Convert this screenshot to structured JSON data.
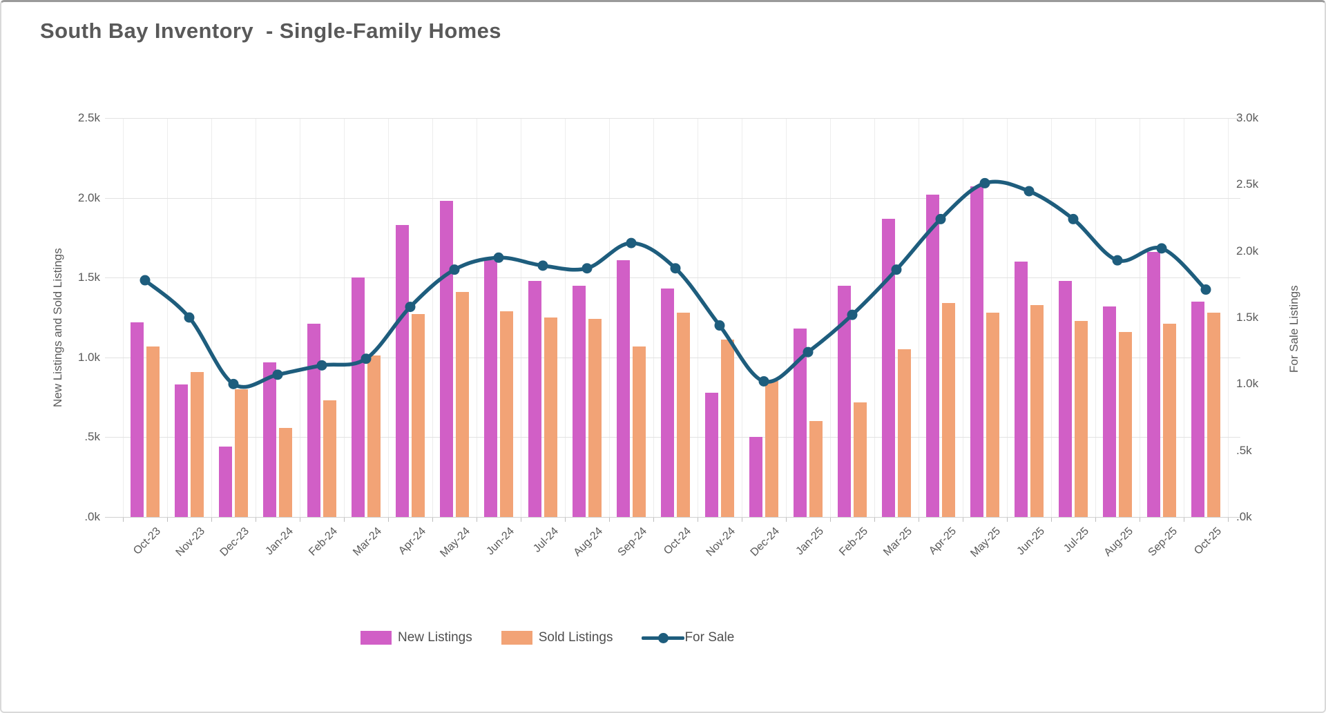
{
  "title": "South Bay Inventory  - Single-Family Homes",
  "colors": {
    "new_listings": "#d15fc6",
    "sold_listings": "#f2a376",
    "for_sale": "#1e5d7d",
    "text": "#595959",
    "gridline": "#e2e2e2"
  },
  "legend": {
    "items": [
      {
        "label": "New Listings",
        "type": "bar"
      },
      {
        "label": "Sold Listings",
        "type": "bar"
      },
      {
        "label": "For Sale",
        "type": "line"
      }
    ]
  },
  "chart_data": {
    "type": "combo bar+line",
    "units": "thousands of listings",
    "categories": [
      "Oct-23",
      "Nov-23",
      "Dec-23",
      "Jan-24",
      "Feb-24",
      "Mar-24",
      "Apr-24",
      "May-24",
      "Jun-24",
      "Jul-24",
      "Aug-24",
      "Sep-24",
      "Oct-24",
      "Nov-24",
      "Dec-24",
      "Jan-25",
      "Feb-25",
      "Mar-25",
      "Apr-25",
      "May-25",
      "Jun-25",
      "Jul-25",
      "Aug-25",
      "Sep-25",
      "Oct-25"
    ],
    "series": [
      {
        "name": "New Listings",
        "type": "bar",
        "axis": "left",
        "values": [
          1.22,
          0.83,
          0.44,
          0.97,
          1.21,
          1.5,
          1.83,
          1.98,
          1.61,
          1.48,
          1.45,
          1.61,
          1.43,
          0.78,
          0.5,
          1.18,
          1.45,
          1.87,
          2.02,
          2.07,
          1.6,
          1.48,
          1.32,
          1.66,
          1.35
        ]
      },
      {
        "name": "Sold Listings",
        "type": "bar",
        "axis": "left",
        "values": [
          1.07,
          0.91,
          0.8,
          0.56,
          0.73,
          1.01,
          1.27,
          1.41,
          1.29,
          1.25,
          1.24,
          1.07,
          1.28,
          1.11,
          0.85,
          0.6,
          0.72,
          1.05,
          1.34,
          1.28,
          1.33,
          1.23,
          1.16,
          1.21,
          1.28
        ]
      },
      {
        "name": "For Sale",
        "type": "line",
        "axis": "right",
        "values": [
          1.78,
          1.5,
          1.0,
          1.07,
          1.14,
          1.19,
          1.58,
          1.86,
          1.95,
          1.89,
          1.87,
          2.06,
          1.87,
          1.44,
          1.02,
          1.24,
          1.52,
          1.86,
          2.24,
          2.51,
          2.45,
          2.24,
          1.93,
          2.02,
          1.71
        ]
      }
    ],
    "left_axis": {
      "title": "New Listings and Sold Listings",
      "min": 0,
      "max": 2.5,
      "ticks": [
        {
          "value": 0.0,
          "label": ".0k"
        },
        {
          "value": 0.5,
          "label": ".5k"
        },
        {
          "value": 1.0,
          "label": "1.0k"
        },
        {
          "value": 1.5,
          "label": "1.5k"
        },
        {
          "value": 2.0,
          "label": "2.0k"
        },
        {
          "value": 2.5,
          "label": "2.5k"
        }
      ]
    },
    "right_axis": {
      "title": "For Sale Listings",
      "min": 0,
      "max": 3.0,
      "ticks": [
        {
          "value": 0.0,
          "label": ".0k"
        },
        {
          "value": 0.5,
          "label": ".5k"
        },
        {
          "value": 1.0,
          "label": "1.0k"
        },
        {
          "value": 1.5,
          "label": "1.5k"
        },
        {
          "value": 2.0,
          "label": "2.0k"
        },
        {
          "value": 2.5,
          "label": "2.5k"
        },
        {
          "value": 3.0,
          "label": "3.0k"
        }
      ]
    },
    "grid": "horizontal (left-axis steps) + vertical (category boundaries)",
    "legend_position": "bottom"
  }
}
